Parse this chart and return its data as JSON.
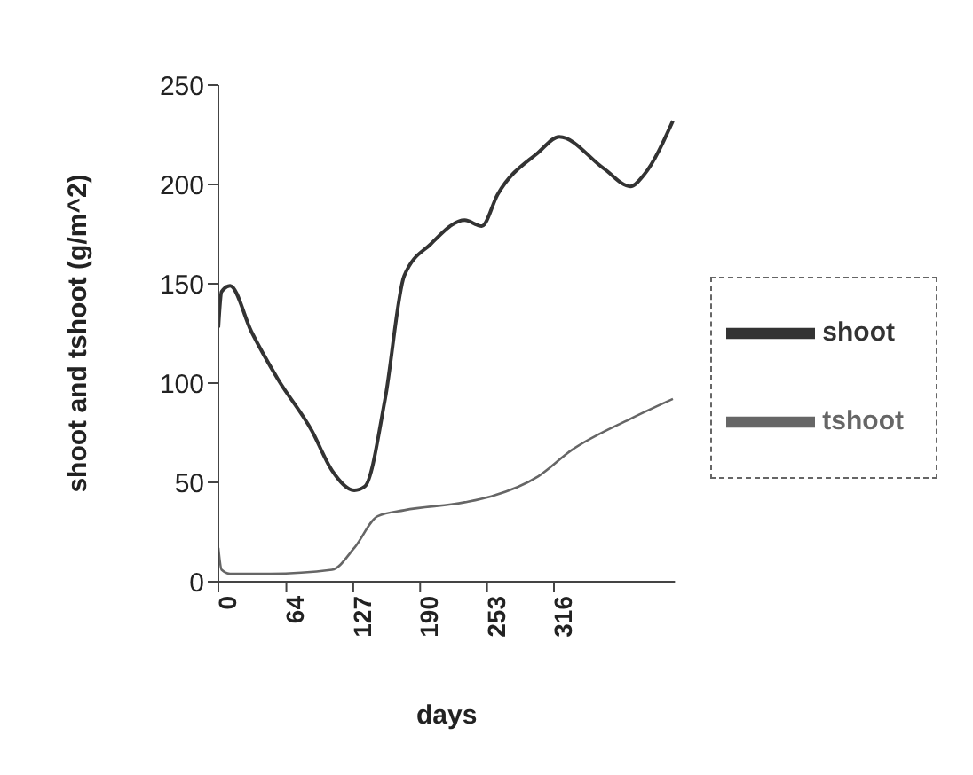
{
  "chart_data": {
    "type": "line",
    "xlabel": "days",
    "ylabel": "shoot and tshoot (g/m^2)",
    "xlim": [
      0,
      430
    ],
    "xticks": [
      0,
      64,
      127,
      190,
      253,
      316
    ],
    "ylim": [
      0,
      250
    ],
    "yticks": [
      0,
      50,
      100,
      150,
      200,
      250
    ],
    "grid": false,
    "legend": "right",
    "marker": "none",
    "line_style": "solid",
    "series": [
      {
        "name": "shoot",
        "color": "#333333",
        "x": [
          0,
          3,
          11,
          31,
          56,
          88,
          107,
          128,
          138,
          157,
          175,
          200,
          232,
          248,
          263,
          301,
          321,
          363,
          388,
          401,
          428
        ],
        "values": [
          128,
          146,
          149,
          126,
          102,
          76,
          56,
          46,
          48,
          92,
          154,
          170,
          182,
          179,
          195,
          216,
          224,
          208,
          199,
          205,
          232
        ]
      },
      {
        "name": "tshoot",
        "color": "#666666",
        "x": [
          0,
          3,
          11,
          49,
          107,
          128,
          150,
          175,
          232,
          257,
          301,
          332,
          388,
          428
        ],
        "values": [
          17,
          6,
          4,
          4,
          6,
          17,
          33,
          36,
          40,
          43,
          53,
          66,
          82,
          92
        ]
      }
    ]
  }
}
